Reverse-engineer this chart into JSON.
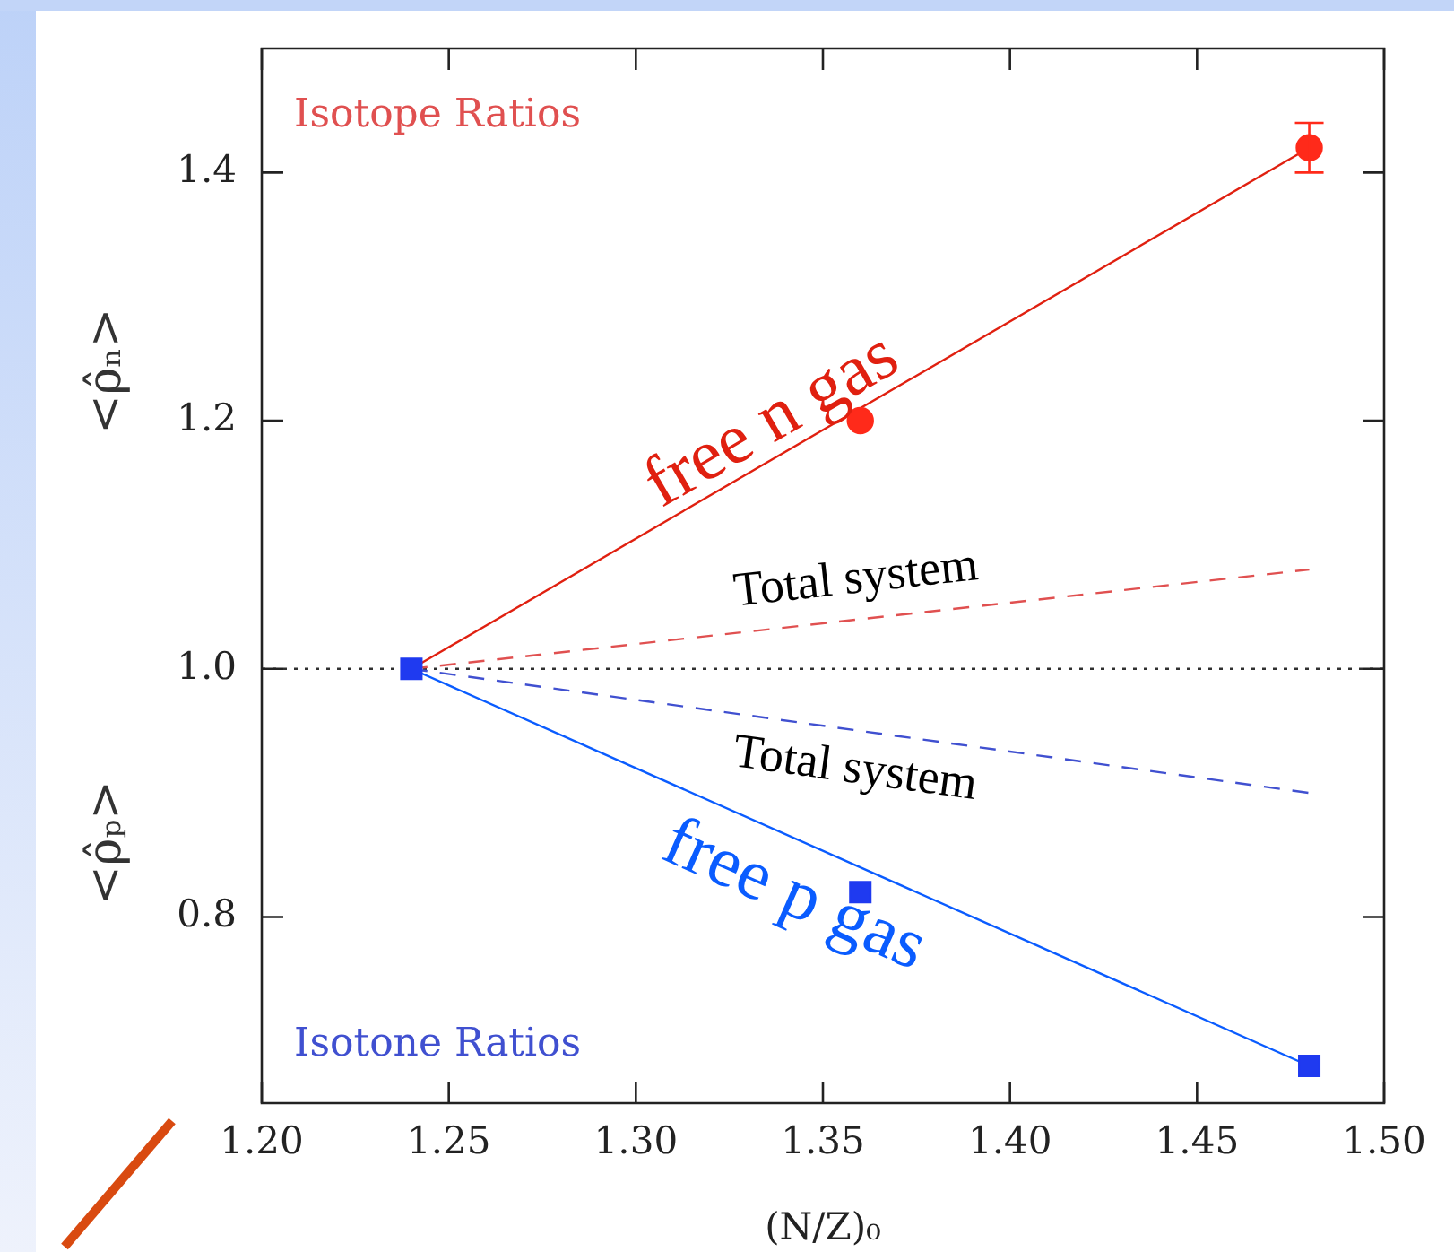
{
  "chart_data": {
    "type": "scatter",
    "xlabel": "(N/Z)₀",
    "ylabel": "<ρ̂ₙ>",
    "xlim": [
      1.2,
      1.5
    ],
    "xticks": [
      {
        "value": 1.2,
        "label": "1.20"
      },
      {
        "value": 1.25,
        "label": "1.25"
      },
      {
        "value": 1.3,
        "label": "1.30"
      },
      {
        "value": 1.35,
        "label": "1.35"
      },
      {
        "value": 1.4,
        "label": "1.40"
      },
      {
        "value": 1.45,
        "label": "1.45"
      },
      {
        "value": 1.5,
        "label": "1.50"
      }
    ],
    "ylim": [
      0.65,
      1.5
    ],
    "yticks": [
      {
        "value": 0.8,
        "label": "0.8"
      },
      {
        "value": 1,
        "label": "1.0"
      },
      {
        "value": 1.2,
        "label": "1.2"
      },
      {
        "value": 1.4,
        "label": "1.4"
      }
    ],
    "grid": false,
    "legend": false,
    "ref_lines": [
      {
        "axis": "y",
        "value": 1,
        "line_style": "dotted",
        "color": "#303030"
      }
    ],
    "annotations": [
      "Isotope Ratios",
      "Isotone Ratios",
      "<ρ̂ₚ>"
    ],
    "series": [
      {
        "type": "line",
        "name": "free n gas",
        "color": "#e02010",
        "x": [
          1.24,
          1.48
        ],
        "values": [
          1,
          1.42
        ],
        "marker": "none",
        "line_style": "solid"
      },
      {
        "type": "line",
        "name": "Total system",
        "color": "#e05050",
        "x": [
          1.24,
          1.48
        ],
        "values": [
          1,
          1.08
        ],
        "marker": "none",
        "line_style": "dashed"
      },
      {
        "type": "line",
        "name": "free p gas",
        "color": "#0a5cff",
        "x": [
          1.24,
          1.48
        ],
        "values": [
          1,
          0.68
        ],
        "marker": "none",
        "line_style": "solid"
      },
      {
        "type": "line",
        "name": "Total system",
        "color": "#4050d0",
        "x": [
          1.24,
          1.48
        ],
        "values": [
          1,
          0.9
        ],
        "marker": "none",
        "line_style": "dashed"
      },
      {
        "color": "#1f3af0",
        "x": [
          1.24,
          1.36,
          1.48
        ],
        "values": [
          1,
          0.82,
          0.68
        ],
        "marker": "square"
      },
      {
        "color": "#ff2a1a",
        "x": [
          1.36,
          1.48
        ],
        "values": [
          1.2,
          1.42
        ],
        "errors": [
          null,
          0.02
        ],
        "marker": "circle"
      }
    ]
  }
}
